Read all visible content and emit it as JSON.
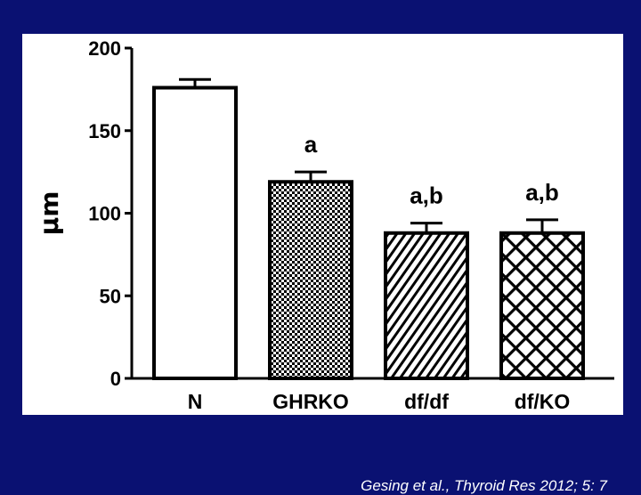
{
  "chart_data": {
    "type": "bar",
    "categories": [
      "N",
      "GHRKO",
      "df/df",
      "df/KO"
    ],
    "values": [
      176,
      119,
      88,
      88
    ],
    "errors": [
      5,
      6,
      6,
      8
    ],
    "annotations": [
      "",
      "a",
      "a,b",
      "a,b"
    ],
    "patterns": [
      "solid",
      "checker",
      "diagonal",
      "crosshatch"
    ],
    "ylabel": "μm",
    "ylim": [
      0,
      200
    ],
    "yticks": [
      0,
      50,
      100,
      150,
      200
    ],
    "grid": false
  },
  "citation": "Gesing et al., Thyroid Res 2012; 5: 7",
  "colors": {
    "background": "#0a1172",
    "panel": "#ffffff",
    "bar_stroke": "#000000"
  }
}
